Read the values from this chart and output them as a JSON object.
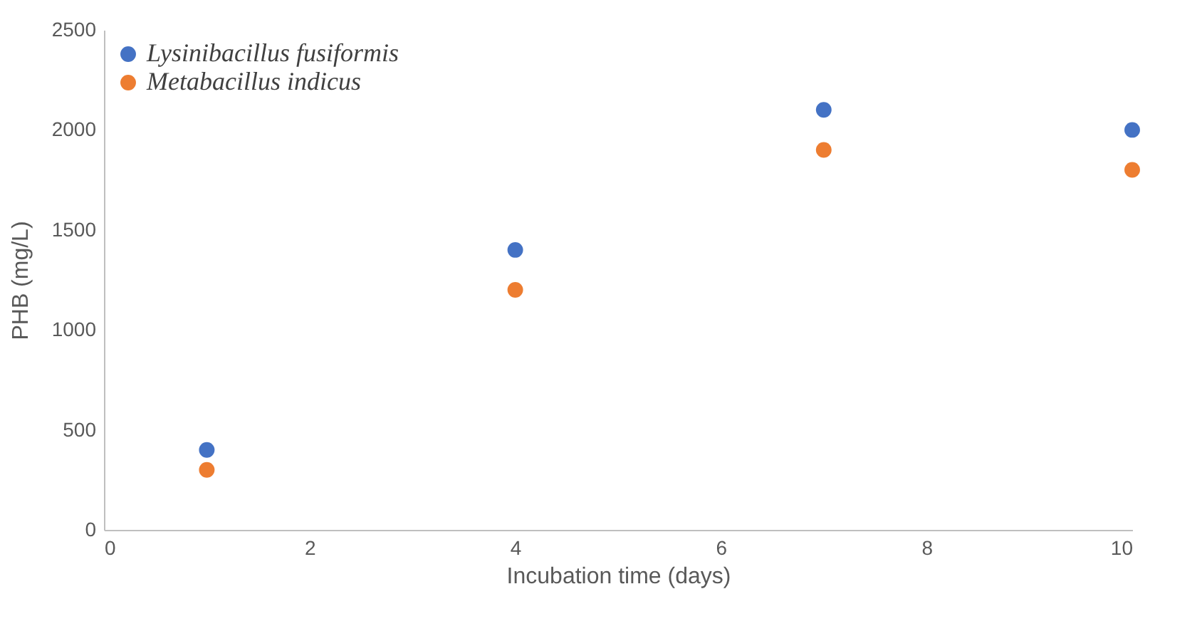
{
  "chart_data": {
    "type": "scatter",
    "xlabel": "Incubation time (days)",
    "ylabel": "PHB (mg/L)",
    "x": [
      1,
      4,
      7,
      10
    ],
    "series": [
      {
        "name": "Lysinibacillus fusiformis",
        "color": "#4472c4",
        "values": [
          400,
          1400,
          2100,
          2000
        ]
      },
      {
        "name": "Metabacillus indicus",
        "color": "#ed7d31",
        "values": [
          300,
          1200,
          1900,
          1800
        ]
      }
    ],
    "xlim": [
      0,
      10
    ],
    "xticks": [
      0,
      2,
      4,
      6,
      8,
      10
    ],
    "ylim": [
      0,
      2500
    ],
    "yticks": [
      0,
      500,
      1000,
      1500,
      2000,
      2500
    ],
    "grid": false,
    "legend": "top left",
    "marker": "circle"
  }
}
